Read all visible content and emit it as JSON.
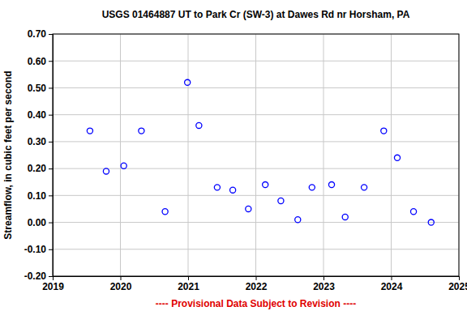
{
  "chart_data": {
    "type": "scatter",
    "title": "USGS 01464887 UT to Park Cr (SW-3) at Dawes Rd nr Horsham, PA",
    "y_label": "Streamflow, in cubic feet per second",
    "annotations": [
      "---- Provisional Data Subject to Revision ----"
    ],
    "x": [
      2019.55,
      2019.79,
      2020.05,
      2020.31,
      2020.66,
      2020.99,
      2021.16,
      2021.43,
      2021.66,
      2021.89,
      2022.14,
      2022.37,
      2022.62,
      2022.83,
      2023.12,
      2023.32,
      2023.6,
      2023.89,
      2024.09,
      2024.33,
      2024.59
    ],
    "values": [
      0.34,
      0.19,
      0.21,
      0.34,
      0.04,
      0.52,
      0.36,
      0.13,
      0.12,
      0.05,
      0.14,
      0.08,
      0.01,
      0.13,
      0.14,
      0.02,
      0.13,
      0.34,
      0.24,
      0.04,
      0.0
    ],
    "color": "#0000ff",
    "marker": "circle",
    "xlim": [
      2019,
      2025
    ],
    "xticks": [
      2019,
      2020,
      2021,
      2022,
      2023,
      2024,
      2025
    ],
    "ylim": [
      -0.2,
      0.7
    ],
    "yticks": [
      {
        "value": -0.2,
        "label": "-0.20"
      },
      {
        "value": -0.1,
        "label": "-0.10"
      },
      {
        "value": 0,
        "label": "0.00"
      },
      {
        "value": 0.1,
        "label": "0.10"
      },
      {
        "value": 0.2,
        "label": "0.20"
      },
      {
        "value": 0.3,
        "label": "0.30"
      },
      {
        "value": 0.4,
        "label": "0.40"
      },
      {
        "value": 0.5,
        "label": "0.50"
      },
      {
        "value": 0.6,
        "label": "0.60"
      },
      {
        "value": 0.7,
        "label": "0.70"
      }
    ],
    "grid": true
  }
}
